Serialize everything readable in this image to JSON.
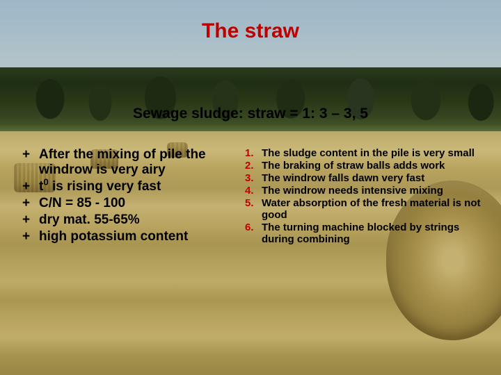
{
  "title": {
    "text": "The straw",
    "color": "#c00000",
    "fontsize": 30
  },
  "subtitle": {
    "text": "Sewage sludge: straw = 1: 3 – 3, 5",
    "color": "#000000",
    "fontsize": 21
  },
  "left": {
    "fontsize": 19,
    "color": "#000000",
    "items": [
      {
        "marker": "+",
        "text": "After the mixing of pile the windrow is very airy"
      },
      {
        "marker": "+",
        "html": "t<sup>0</sup> is rising very fast"
      },
      {
        "marker": "+",
        "text": "C/N = 85 - 100"
      },
      {
        "marker": "+",
        "text": "dry mat. 55-65%"
      },
      {
        "marker": "+",
        "text": "high potassium content"
      }
    ]
  },
  "right": {
    "fontsize": 15,
    "text_color": "#000000",
    "marker_color": "#c00000",
    "items": [
      {
        "marker": "1.",
        "text": "The sludge content in the pile is very small"
      },
      {
        "marker": "2.",
        "text": "The braking of straw balls adds work"
      },
      {
        "marker": "3.",
        "text": "The windrow falls dawn very fast"
      },
      {
        "marker": "4.",
        "text": "The windrow needs intensive mixing"
      },
      {
        "marker": "5.",
        "text": "Water absorption of the fresh material is not good"
      },
      {
        "marker": "6.",
        "text": "The turning machine blocked by strings during combining"
      }
    ]
  },
  "background": {
    "sky_color": "#9eb8c8",
    "tree_color": "#1f2d14",
    "field_color": "#b8a35e",
    "bale_color": "#a68f4a"
  }
}
